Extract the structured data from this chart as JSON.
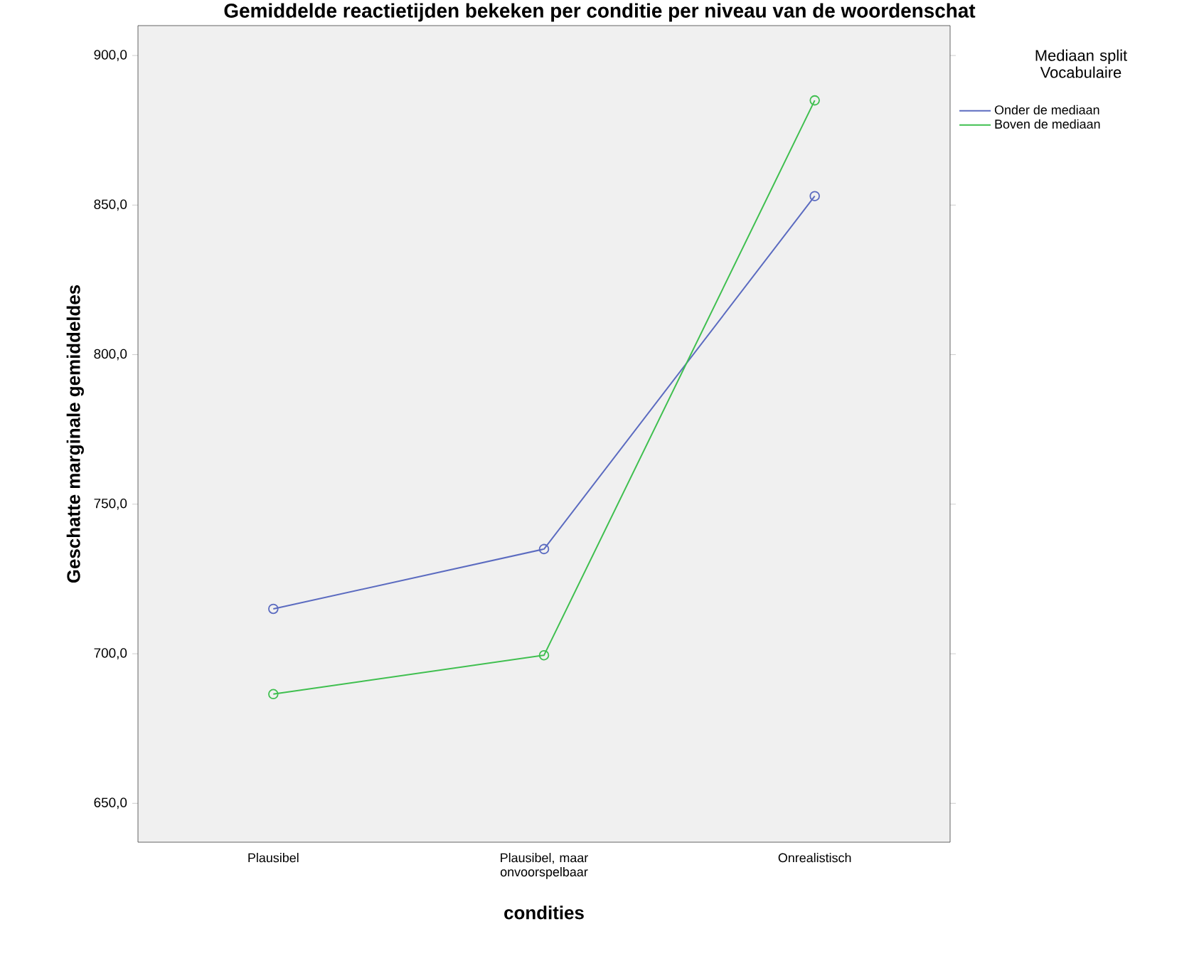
{
  "chart_data": {
    "type": "line",
    "title": "Gemiddelde reactietijden bekeken per conditie per niveau van de woordenschat",
    "xlabel": "condities",
    "ylabel": "Geschatte marginale gemiddeldes",
    "legend_title": "Mediaan split Vocabulaire",
    "categories": [
      "Plausibel",
      "Plausibel, maar onvoorspelbaar",
      "Onrealistisch"
    ],
    "series": [
      {
        "name": "Onder de mediaan",
        "color": "#5b6bc0",
        "values": [
          715,
          735,
          853
        ]
      },
      {
        "name": "Boven de mediaan",
        "color": "#3fbf4f",
        "values": [
          686.5,
          699.5,
          885
        ]
      }
    ],
    "ylim": [
      637,
      910
    ],
    "yticks": [
      {
        "value": 650,
        "label": "650,0"
      },
      {
        "value": 700,
        "label": "700,0"
      },
      {
        "value": 750,
        "label": "750,0"
      },
      {
        "value": 800,
        "label": "800,0"
      },
      {
        "value": 850,
        "label": "850,0"
      },
      {
        "value": 900,
        "label": "900,0"
      }
    ],
    "marker": "circle",
    "legend": "right",
    "grid": false
  }
}
